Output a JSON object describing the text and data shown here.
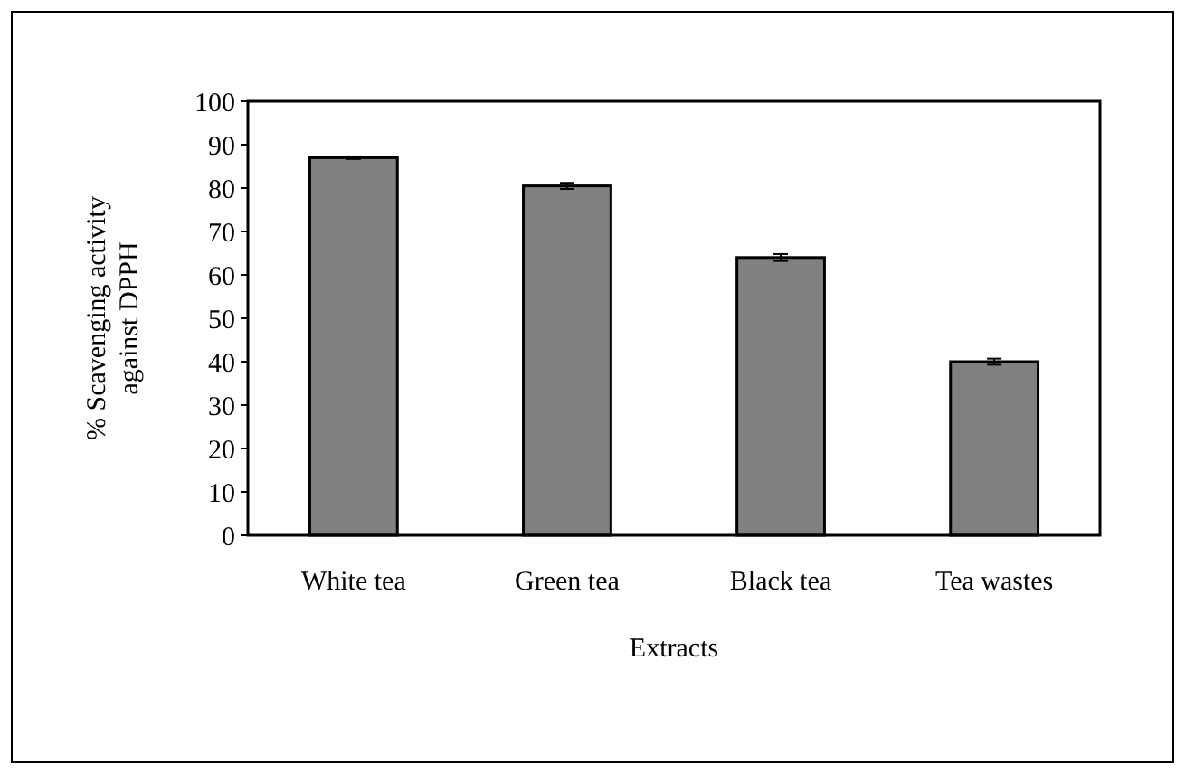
{
  "chart_data": {
    "type": "bar",
    "xlabel": "Extracts",
    "ylabel": "% Scavenging activity against DPPH",
    "categories": [
      "White tea",
      "Green tea",
      "Black tea",
      "Tea wastes"
    ],
    "values": [
      87,
      80.5,
      64,
      40
    ],
    "errors": [
      0.3,
      0.7,
      0.8,
      0.7
    ],
    "color": "#808080",
    "ylim": [
      0,
      100
    ],
    "yticks": [
      0,
      10,
      20,
      30,
      40,
      50,
      60,
      70,
      80,
      90,
      100
    ],
    "grid": false
  }
}
